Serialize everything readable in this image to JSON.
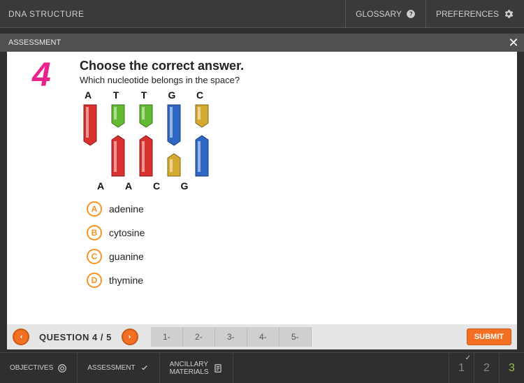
{
  "header": {
    "title": "DNA STRUCTURE",
    "glossary": "GLOSSARY",
    "preferences": "PREFERENCES"
  },
  "assessment_bar": {
    "label": "ASSESSMENT",
    "close": "✕"
  },
  "question": {
    "number": "4",
    "prompt": "Choose the correct answer.",
    "sub": "Which nucleotide belongs in the space?",
    "top_letters": [
      "A",
      "T",
      "T",
      "G",
      "C"
    ],
    "bottom_letters": [
      "A",
      "A",
      "C",
      "G"
    ],
    "bars": [
      {
        "top_color": "#d82f2f",
        "bottom_color": null,
        "top_len": 58,
        "bot_len": 0
      },
      {
        "top_color": "#63b92f",
        "bottom_color": "#d82f2f",
        "top_len": 32,
        "bot_len": 58
      },
      {
        "top_color": "#63b92f",
        "bottom_color": "#d82f2f",
        "top_len": 32,
        "bot_len": 58
      },
      {
        "top_color": "#2f68c4",
        "bottom_color": "#d4a92f",
        "top_len": 58,
        "bot_len": 32
      },
      {
        "top_color": "#d4a92f",
        "bottom_color": "#2f68c4",
        "top_len": 32,
        "bot_len": 58
      }
    ],
    "options": [
      {
        "letter": "A",
        "text": "adenine"
      },
      {
        "letter": "B",
        "text": "cytosine"
      },
      {
        "letter": "C",
        "text": "guanine"
      },
      {
        "letter": "D",
        "text": "thymine"
      }
    ]
  },
  "nav": {
    "counter": "QUESTION 4 / 5",
    "tabs": [
      "1-",
      "2-",
      "3-",
      "4-",
      "5-"
    ],
    "submit": "SUBMIT"
  },
  "footer": {
    "objectives": "OBJECTIVES",
    "assessment": "ASSESSMENT",
    "ancillary1": "ANCILLARY",
    "ancillary2": "MATERIALS",
    "pages": [
      {
        "n": "1",
        "check": true,
        "active": false
      },
      {
        "n": "2",
        "check": false,
        "active": false
      },
      {
        "n": "3",
        "check": false,
        "active": true
      }
    ]
  },
  "colors": {
    "accent": "#f36f21",
    "pink": "#ec228c",
    "option_ring": "#f7941e"
  }
}
